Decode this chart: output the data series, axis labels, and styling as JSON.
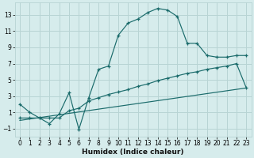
{
  "xlabel": "Humidex (Indice chaleur)",
  "bg_color": "#d6ecec",
  "grid_color": "#b8d4d4",
  "line_color": "#1a6b6b",
  "xlim": [
    -0.5,
    23.5
  ],
  "ylim": [
    -2.0,
    14.5
  ],
  "yticks": [
    -1,
    1,
    3,
    5,
    7,
    9,
    11,
    13
  ],
  "xticks": [
    0,
    1,
    2,
    3,
    4,
    5,
    6,
    7,
    8,
    9,
    10,
    11,
    12,
    13,
    14,
    15,
    16,
    17,
    18,
    19,
    20,
    21,
    22,
    23
  ],
  "line1_x": [
    0,
    1,
    2,
    3,
    4,
    5,
    6,
    7,
    8,
    9,
    10,
    11,
    12,
    13,
    14,
    15,
    16,
    17,
    18,
    19,
    20,
    21,
    22,
    23
  ],
  "line1_y": [
    2.0,
    1.0,
    0.3,
    -0.4,
    0.8,
    3.4,
    -1.1,
    2.8,
    6.3,
    6.7,
    10.5,
    12.0,
    12.5,
    13.3,
    13.8,
    13.6,
    12.8,
    9.5,
    9.5,
    8.0,
    7.8,
    7.8,
    8.0,
    8.0
  ],
  "line2_x": [
    0,
    1,
    2,
    3,
    4,
    5,
    6,
    7,
    8,
    9,
    10,
    11,
    12,
    13,
    14,
    15,
    16,
    17,
    18,
    19,
    20,
    21,
    22,
    23
  ],
  "line2_y": [
    0.3,
    0.3,
    0.3,
    0.3,
    0.3,
    1.2,
    1.5,
    2.4,
    2.8,
    3.2,
    3.5,
    3.8,
    4.2,
    4.5,
    4.9,
    5.2,
    5.5,
    5.8,
    6.0,
    6.3,
    6.5,
    6.7,
    7.0,
    4.0
  ],
  "line3_x": [
    0,
    23
  ],
  "line3_y": [
    0.0,
    4.0
  ]
}
